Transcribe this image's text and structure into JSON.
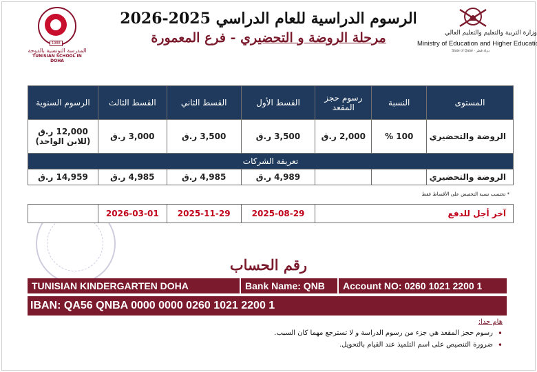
{
  "header": {
    "title_line1": "الرسوم الدراسية للعام الدراسي 2025-2026",
    "title_line2_main": "مرحلة الروضة و التحضيري",
    "title_line2_suffix": " - فرع المعمورة"
  },
  "school_logo": {
    "year": "1988",
    "name_ar": "المدرسة التونسية بالدوحة",
    "name_en": "TUNISIAN SCHOOL IN DOHA"
  },
  "ministry_logo": {
    "name_ar": "وزارة التربية والتعليم والتعليم العالي",
    "name_en": "Ministry of Education and Higher Education",
    "state": "State of Qatar · دولة قطر"
  },
  "fees_table": {
    "headers": [
      "المستوى",
      "النسبة",
      "رسوم حجز المقعد",
      "القسط الأول",
      "القسط الثاني",
      "القسط الثالث",
      "الرسوم السنوية"
    ],
    "row1": {
      "level": "الروضة والتحضيري",
      "percent": "100 %",
      "seat": "2,000 ر.ق",
      "inst1": "3,500 ر.ق",
      "inst2": "3,500 ر.ق",
      "inst3": "3,000 ر.ق",
      "annual": "12,000 ر.ق",
      "annual_note": "(للابن الواحد)"
    },
    "section_title": "تعريفة الشركات",
    "row2": {
      "level": "الروضة والتحضيري",
      "percent": "",
      "seat": "",
      "inst1": "4,989 ر.ق",
      "inst2": "4,985 ر.ق",
      "inst3": "4,985 ر.ق",
      "annual": "14,959 ر.ق"
    }
  },
  "discount_note": "* تحتسب نسبة التخفيض على الأقساط فقط",
  "deadlines": {
    "label": "آخر أجل للدفع",
    "inst1": "2025-08-29",
    "inst2": "2025-11-29",
    "inst3": "2026-03-01"
  },
  "bank": {
    "title": "رقم الحساب",
    "account_name": "TUNISIAN KINDERGARTEN DOHA",
    "bank_name": "Bank Name: QNB",
    "account_no": "Account NO: 0260 1021 2200 1",
    "iban": "IBAN: QA56 QNBA 0000 0000 0260 1021 2200 1"
  },
  "notes": {
    "heading": "هام جدا:",
    "items": [
      "رسوم حجز المقعد هي جزء من رسوم الدراسة و لا تسترجع مهما كان السبب.",
      "ضرورة التنصيص على اسم التلميذ عند القيام بالتحويل."
    ]
  },
  "colors": {
    "maroon": "#7a1a2c",
    "navy": "#1f3a5c",
    "deadline_red": "#c0001a"
  }
}
